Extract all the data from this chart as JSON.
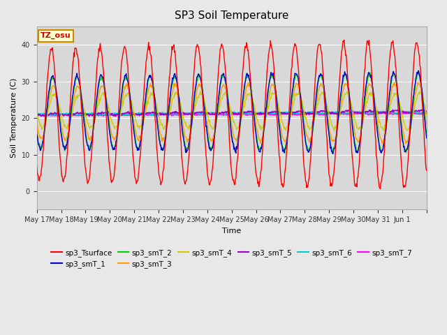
{
  "title": "SP3 Soil Temperature",
  "ylabel": "Soil Temperature (C)",
  "xlabel": "Time",
  "tz_label": "TZ_osu",
  "ylim": [
    -5,
    45
  ],
  "background_color": "#e8e8e8",
  "plot_bg_color": "#d8d8d8",
  "series_colors": {
    "sp3_Tsurface": "#ff0000",
    "sp3_smT_1": "#0000cc",
    "sp3_smT_2": "#00cc00",
    "sp3_smT_3": "#ff9900",
    "sp3_smT_4": "#cccc00",
    "sp3_smT_5": "#9900cc",
    "sp3_smT_6": "#00cccc",
    "sp3_smT_7": "#ff00ff"
  },
  "x_tick_labels": [
    "May 17",
    "May 18",
    "May 19",
    "May 20",
    "May 21",
    "May 22",
    "May 23",
    "May 24",
    "May 25",
    "May 26",
    "May 27",
    "May 28",
    "May 29",
    "May 30",
    "May 31",
    "Jun 1",
    ""
  ],
  "n_days": 16,
  "pts_per_day": 48
}
